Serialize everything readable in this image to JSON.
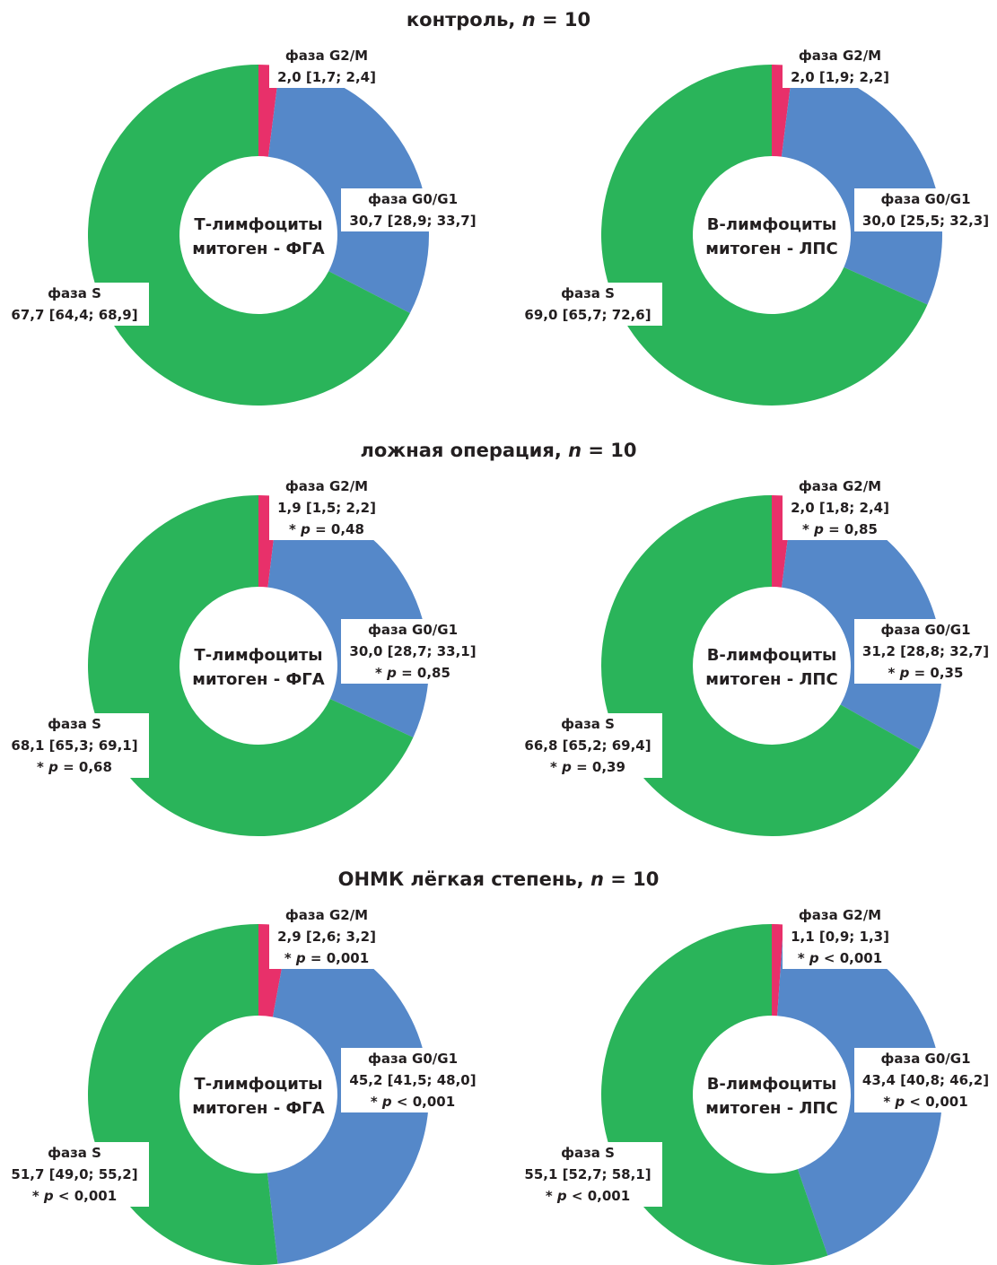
{
  "chart_data": [
    {
      "type": "pie",
      "group_title": "контроль",
      "n_label": "n",
      "n_value": "10",
      "center_label_1": "Т-лимфоциты",
      "center_label_2": "митоген - ФГА",
      "categories": [
        "фаза G2/M",
        "фаза G0/G1",
        "фаза S"
      ],
      "values": [
        2.0,
        30.7,
        67.7
      ],
      "value_labels": [
        "2,0 [1,7; 2,4]",
        "30,7 [28,9; 33,7]",
        "67,7 [64,4; 68,9]"
      ],
      "p_labels": [
        "",
        "",
        ""
      ],
      "colors": [
        "#e8306a",
        "#5588c9",
        "#2ab45a"
      ]
    },
    {
      "type": "pie",
      "group_title": "контроль",
      "n_label": "n",
      "n_value": "10",
      "center_label_1": "B-лимфоциты",
      "center_label_2": "митоген - ЛПС",
      "categories": [
        "фаза G2/M",
        "фаза G0/G1",
        "фаза S"
      ],
      "values": [
        2.0,
        30.0,
        69.0
      ],
      "value_labels": [
        "2,0 [1,9; 2,2]",
        "30,0 [25,5; 32,3]",
        "69,0 [65,7; 72,6]"
      ],
      "p_labels": [
        "",
        "",
        ""
      ],
      "colors": [
        "#e8306a",
        "#5588c9",
        "#2ab45a"
      ]
    },
    {
      "type": "pie",
      "group_title": "ложная операция",
      "n_label": "n",
      "n_value": "10",
      "center_label_1": "Т-лимфоциты",
      "center_label_2": "митоген - ФГА",
      "categories": [
        "фаза G2/M",
        "фаза G0/G1",
        "фаза S"
      ],
      "values": [
        1.9,
        30.0,
        68.1
      ],
      "value_labels": [
        "1,9 [1,5; 2,2]",
        "30,0 [28,7; 33,1]",
        "68,1 [65,3; 69,1]"
      ],
      "p_labels": [
        "0,48",
        "0,85",
        "0,68"
      ],
      "p_operators": [
        "=",
        "=",
        "="
      ],
      "colors": [
        "#e8306a",
        "#5588c9",
        "#2ab45a"
      ]
    },
    {
      "type": "pie",
      "group_title": "ложная операция",
      "n_label": "n",
      "n_value": "10",
      "center_label_1": "B-лимфоциты",
      "center_label_2": "митоген - ЛПС",
      "categories": [
        "фаза G2/M",
        "фаза G0/G1",
        "фаза S"
      ],
      "values": [
        2.0,
        31.2,
        66.8
      ],
      "value_labels": [
        "2,0 [1,8; 2,4]",
        "31,2 [28,8; 32,7]",
        "66,8 [65,2; 69,4]"
      ],
      "p_labels": [
        "0,85",
        "0,35",
        "0,39"
      ],
      "p_operators": [
        "=",
        "=",
        "="
      ],
      "colors": [
        "#e8306a",
        "#5588c9",
        "#2ab45a"
      ]
    },
    {
      "type": "pie",
      "group_title": "ОНМК лёгкая степень",
      "n_label": "n",
      "n_value": "10",
      "center_label_1": "Т-лимфоциты",
      "center_label_2": "митоген - ФГА",
      "categories": [
        "фаза G2/M",
        "фаза G0/G1",
        "фаза S"
      ],
      "values": [
        2.9,
        45.2,
        51.7
      ],
      "value_labels": [
        "2,9 [2,6; 3,2]",
        "45,2 [41,5; 48,0]",
        "51,7 [49,0; 55,2]"
      ],
      "p_labels": [
        "0,001",
        "0,001",
        "0,001"
      ],
      "p_operators": [
        "=",
        "<",
        "<"
      ],
      "colors": [
        "#e8306a",
        "#5588c9",
        "#2ab45a"
      ]
    },
    {
      "type": "pie",
      "group_title": "ОНМК лёгкая степень",
      "n_label": "n",
      "n_value": "10",
      "center_label_1": "B-лимфоциты",
      "center_label_2": "митоген - ЛПС",
      "categories": [
        "фаза G2/M",
        "фаза G0/G1",
        "фаза S"
      ],
      "values": [
        1.1,
        43.4,
        55.1
      ],
      "value_labels": [
        "1,1 [0,9; 1,3]",
        "43,4 [40,8; 46,2]",
        "55,1 [52,7; 58,1]"
      ],
      "p_labels": [
        "0,001",
        "0,001",
        "0,001"
      ],
      "p_operators": [
        "<",
        "<",
        "<"
      ],
      "colors": [
        "#e8306a",
        "#5588c9",
        "#2ab45a"
      ]
    }
  ]
}
